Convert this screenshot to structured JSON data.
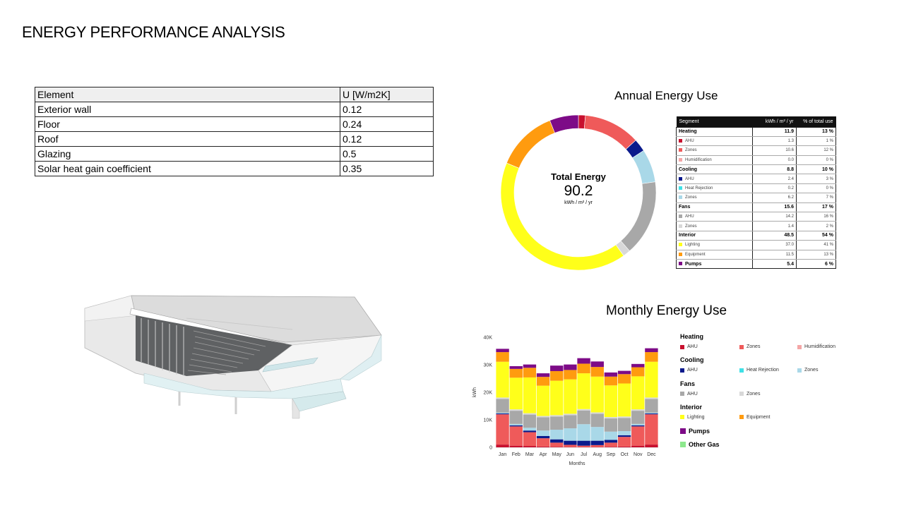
{
  "page": {
    "title": "ENERGY PERFORMANCE ANALYSIS"
  },
  "u_table": {
    "headers": [
      "Element",
      "U [W/m2K]"
    ],
    "rows": [
      {
        "element": "Exterior wall",
        "u": "0.12"
      },
      {
        "element": "Floor",
        "u": "0.24"
      },
      {
        "element": "Roof",
        "u": "0.12"
      },
      {
        "element": "Glazing",
        "u": "0.5"
      },
      {
        "element": "Solar heat gain coefficient",
        "u": "0.35"
      }
    ]
  },
  "annual": {
    "title": "Annual Energy Use",
    "total_label": "Total Energy",
    "total_value": "90.2",
    "total_unit": "kWh / m² / yr",
    "table_headers": [
      "Segment",
      "kWh / m² / yr",
      "% of total use"
    ],
    "rows": [
      {
        "name": "Heating",
        "value": "11.9",
        "pct": "13 %",
        "group": true
      },
      {
        "name": "AHU",
        "value": "1.3",
        "pct": "1 %",
        "color": "#c8102e"
      },
      {
        "name": "Zones",
        "value": "10.6",
        "pct": "12 %",
        "color": "#ef5a5a"
      },
      {
        "name": "Humidification",
        "value": "0.0",
        "pct": "0 %",
        "color": "#f4a6a6"
      },
      {
        "name": "Cooling",
        "value": "8.8",
        "pct": "10 %",
        "group": true
      },
      {
        "name": "AHU",
        "value": "2.4",
        "pct": "3 %",
        "color": "#0a1a8c"
      },
      {
        "name": "Heat Rejection",
        "value": "0.2",
        "pct": "0 %",
        "color": "#3fe0e6"
      },
      {
        "name": "Zones",
        "value": "6.2",
        "pct": "7 %",
        "color": "#a9d8e8"
      },
      {
        "name": "Fans",
        "value": "15.6",
        "pct": "17 %",
        "group": true
      },
      {
        "name": "AHU",
        "value": "14.2",
        "pct": "16 %",
        "color": "#a8a8a8"
      },
      {
        "name": "Zones",
        "value": "1.4",
        "pct": "2 %",
        "color": "#d8d8d8"
      },
      {
        "name": "Interior",
        "value": "48.5",
        "pct": "54 %",
        "group": true
      },
      {
        "name": "Lighting",
        "value": "37.0",
        "pct": "41 %",
        "color": "#ffff1a"
      },
      {
        "name": "Equipment",
        "value": "11.5",
        "pct": "13 %",
        "color": "#ff9b0f"
      },
      {
        "name": "Pumps",
        "value": "5.4",
        "pct": "6 %",
        "group": true,
        "color": "#7d0b87"
      }
    ]
  },
  "monthly": {
    "title": "Monthly Energy Use",
    "legend": {
      "groups": [
        {
          "name": "Heating",
          "items": [
            {
              "name": "AHU",
              "color": "#c8102e"
            },
            {
              "name": "Zones",
              "color": "#ef5a5a"
            },
            {
              "name": "Humidification",
              "color": "#f4a6a6"
            }
          ]
        },
        {
          "name": "Cooling",
          "items": [
            {
              "name": "AHU",
              "color": "#0a1a8c"
            },
            {
              "name": "Heat Rejection",
              "color": "#3fe0e6"
            },
            {
              "name": "Zones",
              "color": "#a9d8e8"
            }
          ]
        },
        {
          "name": "Fans",
          "items": [
            {
              "name": "AHU",
              "color": "#a8a8a8"
            },
            {
              "name": "Zones",
              "color": "#d8d8d8"
            }
          ]
        },
        {
          "name": "Interior",
          "items": [
            {
              "name": "Lighting",
              "color": "#ffff1a"
            },
            {
              "name": "Equipment",
              "color": "#ff9b0f"
            }
          ]
        }
      ],
      "pumps": {
        "name": "Pumps",
        "color": "#7d0b87"
      },
      "other_gas": {
        "name": "Other Gas",
        "color": "#8de88d"
      }
    }
  },
  "chart_data": [
    {
      "type": "pie",
      "title": "Annual Energy Use",
      "categories": [
        "Heating AHU",
        "Heating Zones",
        "Cooling AHU",
        "Cooling Zones",
        "Fans AHU",
        "Fans Zones",
        "Lighting",
        "Equipment",
        "Pumps"
      ],
      "values": [
        1.3,
        10.6,
        2.4,
        6.2,
        14.2,
        1.4,
        37.0,
        11.5,
        5.4
      ],
      "colors": [
        "#c8102e",
        "#ef5a5a",
        "#0a1a8c",
        "#a9d8e8",
        "#a8a8a8",
        "#d8d8d8",
        "#ffff1a",
        "#ff9b0f",
        "#7d0b87"
      ]
    },
    {
      "type": "bar",
      "stacked": true,
      "title": "Monthly Energy Use",
      "xlabel": "Months",
      "ylabel": "kWh",
      "ylim": [
        0,
        40000
      ],
      "y_ticks": [
        0,
        10000,
        20000,
        30000,
        40000
      ],
      "y_tick_labels": [
        "0",
        "10K",
        "20K",
        "30K",
        "40K"
      ],
      "categories": [
        "Jan",
        "Feb",
        "Mar",
        "Apr",
        "May",
        "Jun",
        "Jul",
        "Aug",
        "Sep",
        "Oct",
        "Nov",
        "Dec"
      ],
      "series": [
        {
          "name": "Heating AHU",
          "color": "#c8102e",
          "values": [
            1000,
            600,
            500,
            300,
            200,
            100,
            100,
            100,
            200,
            300,
            600,
            1000
          ]
        },
        {
          "name": "Heating Zones",
          "color": "#ef5a5a",
          "values": [
            11000,
            7000,
            5000,
            3000,
            1500,
            800,
            500,
            700,
            1500,
            3500,
            7000,
            11000
          ]
        },
        {
          "name": "Cooling AHU",
          "color": "#0a1a8c",
          "values": [
            300,
            400,
            600,
            800,
            1200,
            1500,
            1800,
            1600,
            1000,
            600,
            400,
            300
          ]
        },
        {
          "name": "Cooling Zones",
          "color": "#a9d8e8",
          "values": [
            300,
            500,
            1000,
            2000,
            3500,
            4500,
            6000,
            5000,
            3000,
            1500,
            500,
            300
          ]
        },
        {
          "name": "Fans AHU",
          "color": "#a8a8a8",
          "values": [
            5000,
            4800,
            4800,
            4800,
            4800,
            4800,
            5000,
            4800,
            4800,
            4800,
            4800,
            5000
          ]
        },
        {
          "name": "Fans Zones",
          "color": "#d8d8d8",
          "values": [
            500,
            500,
            500,
            500,
            500,
            500,
            500,
            500,
            500,
            500,
            500,
            500
          ]
        },
        {
          "name": "Lighting",
          "color": "#ffff1a",
          "values": [
            13000,
            11500,
            13000,
            11000,
            12500,
            12500,
            13000,
            13000,
            11500,
            12000,
            12000,
            13000
          ]
        },
        {
          "name": "Equipment",
          "color": "#ff9b0f",
          "values": [
            3500,
            3200,
            3500,
            3200,
            3500,
            3400,
            3500,
            3500,
            3200,
            3400,
            3300,
            3500
          ]
        },
        {
          "name": "Pumps",
          "color": "#7d0b87",
          "values": [
            1200,
            1000,
            1200,
            1300,
            2000,
            2000,
            2000,
            2000,
            1500,
            1200,
            1200,
            1400
          ]
        }
      ]
    }
  ]
}
